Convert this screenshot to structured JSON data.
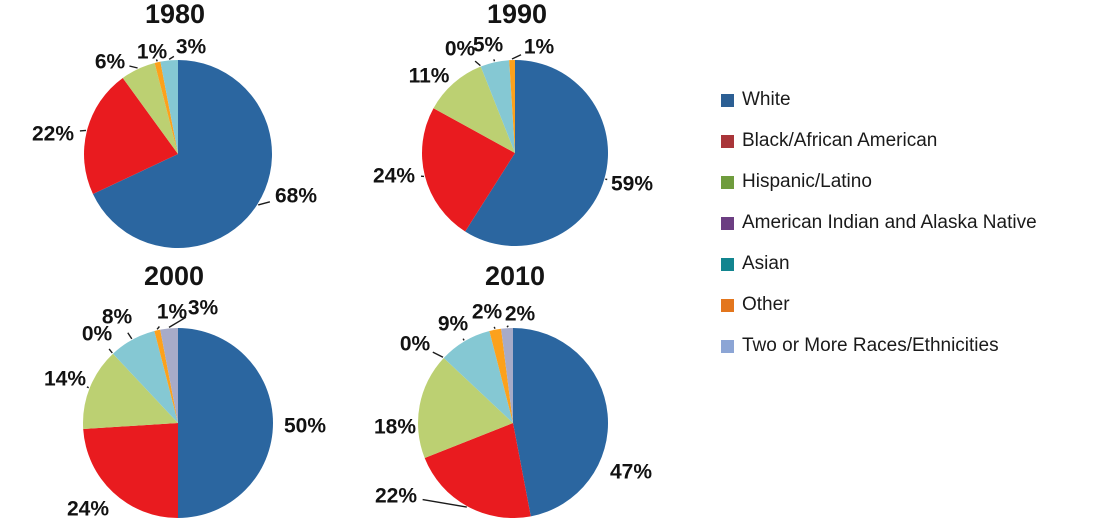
{
  "page": {
    "background": "#ffffff",
    "description": "Four pie charts of racial/ethnic percentage distribution for 1980, 1990, 2000 and 2010 with a shared legend on the right"
  },
  "categories": [
    {
      "name": "White",
      "slug": "white",
      "legend_color": "#2C5F94",
      "pie_color": "#2B66A0"
    },
    {
      "name": "Black/African American",
      "slug": "black-african-american",
      "legend_color": "#A93539",
      "pie_color": "#E91B1F"
    },
    {
      "name": "Hispanic/Latino",
      "slug": "hispanic-latino",
      "legend_color": "#6F9C3D",
      "pie_color": "#BCD072"
    },
    {
      "name": "American Indian and Alaska Native",
      "slug": "american-indian-and-alaska-native",
      "legend_color": "#6C3E82",
      "pie_color": "#6C3E82"
    },
    {
      "name": "Asian",
      "slug": "asian",
      "legend_color": "#12858F",
      "pie_color": "#85C8D3"
    },
    {
      "name": "Other",
      "slug": "other",
      "legend_color": "#E3761D",
      "pie_color": "#FCA11C"
    },
    {
      "name": "Two or More Races/Ethnicities",
      "slug": "two-or-more-races-ethnicities",
      "legend_color": "#8CA5D5",
      "pie_color": "#A7ABC8"
    }
  ],
  "legend": {
    "position": "right"
  },
  "chart_data": [
    {
      "type": "pie",
      "title": "1980",
      "unit": "percent",
      "slice_order": "clockwise-from-top",
      "slices": [
        {
          "category": "White",
          "value": 68,
          "label": "68%"
        },
        {
          "category": "Black/African American",
          "value": 22,
          "label": "22%"
        },
        {
          "category": "Hispanic/Latino",
          "value": 6,
          "label": "6%"
        },
        {
          "category": "Other",
          "value": 1,
          "label": "1%"
        },
        {
          "category": "Asian",
          "value": 3,
          "label": "3%"
        }
      ]
    },
    {
      "type": "pie",
      "title": "1990",
      "unit": "percent",
      "slice_order": "clockwise-from-top",
      "slices": [
        {
          "category": "White",
          "value": 59,
          "label": "59%"
        },
        {
          "category": "Black/African American",
          "value": 24,
          "label": "24%"
        },
        {
          "category": "Hispanic/Latino",
          "value": 11,
          "label": "11%"
        },
        {
          "category": "American Indian and Alaska Native",
          "value": 0,
          "label": "0%"
        },
        {
          "category": "Asian",
          "value": 5,
          "label": "5%"
        },
        {
          "category": "Other",
          "value": 1,
          "label": "1%"
        }
      ]
    },
    {
      "type": "pie",
      "title": "2000",
      "unit": "percent",
      "slice_order": "clockwise-from-top",
      "slices": [
        {
          "category": "White",
          "value": 50,
          "label": "50%"
        },
        {
          "category": "Black/African American",
          "value": 24,
          "label": "24%"
        },
        {
          "category": "Hispanic/Latino",
          "value": 14,
          "label": "14%"
        },
        {
          "category": "American Indian and Alaska Native",
          "value": 0,
          "label": "0%"
        },
        {
          "category": "Asian",
          "value": 8,
          "label": "8%"
        },
        {
          "category": "Other",
          "value": 1,
          "label": "1%"
        },
        {
          "category": "Two or More Races/Ethnicities",
          "value": 3,
          "label": "3%"
        }
      ]
    },
    {
      "type": "pie",
      "title": "2010",
      "unit": "percent",
      "slice_order": "clockwise-from-top",
      "slices": [
        {
          "category": "White",
          "value": 47,
          "label": "47%"
        },
        {
          "category": "Black/African American",
          "value": 22,
          "label": "22%"
        },
        {
          "category": "Hispanic/Latino",
          "value": 18,
          "label": "18%"
        },
        {
          "category": "American Indian and Alaska Native",
          "value": 0,
          "label": "0%"
        },
        {
          "category": "Asian",
          "value": 9,
          "label": "9%"
        },
        {
          "category": "Other",
          "value": 2,
          "label": "2%"
        },
        {
          "category": "Two or More Races/Ethnicities",
          "value": 2,
          "label": "2%"
        }
      ]
    }
  ]
}
